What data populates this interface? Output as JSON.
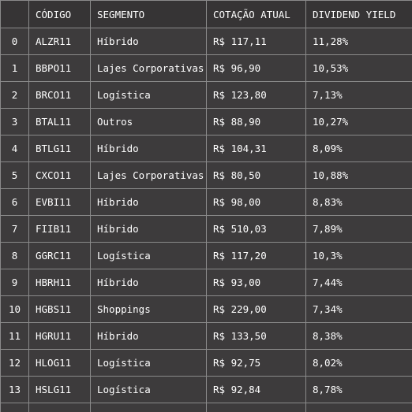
{
  "table": {
    "headers": [
      "",
      "CÓDIGO",
      "SEGMENTO",
      "COTAÇÃO ATUAL",
      "DIVIDEND YIELD"
    ],
    "rows": [
      [
        "0",
        "ALZR11",
        "Híbrido",
        "R$ 117,11",
        "11,28%"
      ],
      [
        "1",
        "BBPO11",
        "Lajes Corporativas",
        "R$ 96,90",
        "10,53%"
      ],
      [
        "2",
        "BRCO11",
        "Logística",
        "R$ 123,80",
        "7,13%"
      ],
      [
        "3",
        "BTAL11",
        "Outros",
        "R$ 88,90",
        "10,27%"
      ],
      [
        "4",
        "BTLG11",
        "Híbrido",
        "R$ 104,31",
        "8,09%"
      ],
      [
        "5",
        "CXCO11",
        "Lajes Corporativas",
        "R$ 80,50",
        "10,88%"
      ],
      [
        "6",
        "EVBI11",
        "Híbrido",
        "R$ 98,00",
        "8,83%"
      ],
      [
        "7",
        "FIIB11",
        "Híbrido",
        "R$ 510,03",
        "7,89%"
      ],
      [
        "8",
        "GGRC11",
        "Logística",
        "R$ 117,20",
        "10,3%"
      ],
      [
        "9",
        "HBRH11",
        "Híbrido",
        "R$ 93,00",
        "7,44%"
      ],
      [
        "10",
        "HGBS11",
        "Shoppings",
        "R$ 229,00",
        "7,34%"
      ],
      [
        "11",
        "HGRU11",
        "Híbrido",
        "R$ 133,50",
        "8,38%"
      ],
      [
        "12",
        "HLOG11",
        "Logística",
        "R$ 92,75",
        "8,02%"
      ],
      [
        "13",
        "HSLG11",
        "Logística",
        "R$ 92,84",
        "8,78%"
      ],
      [
        "",
        "",
        "",
        "",
        ""
      ]
    ],
    "colors": {
      "background": "#3d3b3c",
      "header_background": "#363435",
      "border": "#8a8a8a",
      "text": "#ffffff"
    }
  }
}
